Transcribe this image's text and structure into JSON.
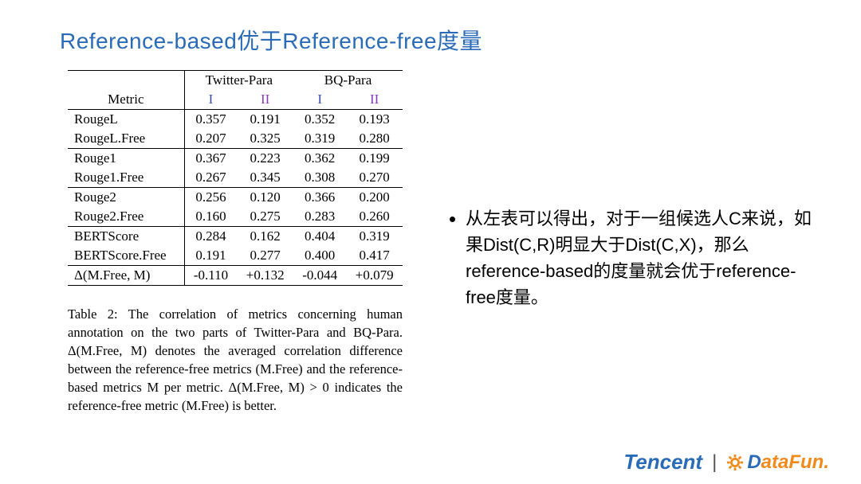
{
  "title_color": "#2a6bb8",
  "title": "Reference-based优于Reference-free度量",
  "table": {
    "super_headers": [
      "",
      "Twitter-Para",
      "BQ-Para"
    ],
    "col_header_label": "Metric",
    "sub_headers": [
      "I",
      "II",
      "I",
      "II"
    ],
    "sub_header_colors": [
      "#3b4fb8",
      "#8a3bb8",
      "#3b4fb8",
      "#8a3bb8"
    ],
    "groups": [
      [
        {
          "m": "RougeL",
          "v": [
            "0.357",
            "0.191",
            "0.352",
            "0.193"
          ]
        },
        {
          "m": "RougeL.Free",
          "v": [
            "0.207",
            "0.325",
            "0.319",
            "0.280"
          ]
        }
      ],
      [
        {
          "m": "Rouge1",
          "v": [
            "0.367",
            "0.223",
            "0.362",
            "0.199"
          ]
        },
        {
          "m": "Rouge1.Free",
          "v": [
            "0.267",
            "0.345",
            "0.308",
            "0.270"
          ]
        }
      ],
      [
        {
          "m": "Rouge2",
          "v": [
            "0.256",
            "0.120",
            "0.366",
            "0.200"
          ]
        },
        {
          "m": "Rouge2.Free",
          "v": [
            "0.160",
            "0.275",
            "0.283",
            "0.260"
          ]
        }
      ],
      [
        {
          "m": "BERTScore",
          "v": [
            "0.284",
            "0.162",
            "0.404",
            "0.319"
          ]
        },
        {
          "m": "BERTScore.Free",
          "v": [
            "0.191",
            "0.277",
            "0.400",
            "0.417"
          ]
        }
      ]
    ],
    "delta_row": {
      "m": "Δ(M.Free, M)",
      "v": [
        "-0.110",
        "+0.132",
        "-0.044",
        "+0.079"
      ]
    }
  },
  "caption": "Table 2: The correlation of metrics concerning human annotation on the two parts of Twitter-Para and BQ-Para. Δ(M.Free, M) denotes the averaged correlation difference between the reference-free metrics (M.Free) and the reference-based metrics M per metric. Δ(M.Free, M) > 0 indicates the reference-free metric (M.Free) is better.",
  "bullet": "从左表可以得出，对于一组候选人C来说，如果Dist(C,R)明显大于Dist(C,X)，那么reference-based的度量就会优于reference-free度量。",
  "footer": {
    "tencent": "Tencent",
    "tencent_color": "#2a6bb8",
    "separator": "|",
    "datafun_prefix": "D",
    "datafun_rest": "ataFun.",
    "datafun_color": "#f08a1d"
  }
}
